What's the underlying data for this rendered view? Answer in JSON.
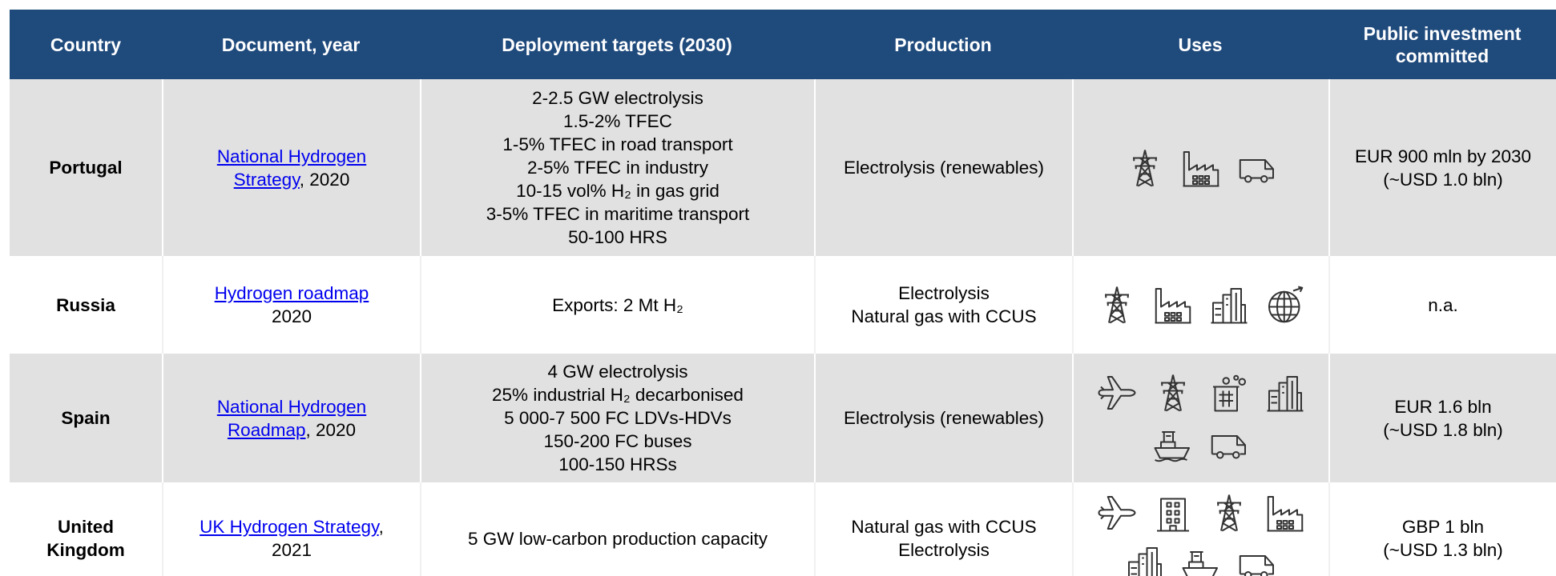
{
  "table": {
    "headers": [
      "Country",
      "Document, year",
      "Deployment targets (2030)",
      "Production",
      "Uses",
      "Public investment committed"
    ],
    "rows": [
      {
        "country": "Portugal",
        "document_link": "National Hydrogen Strategy",
        "document_suffix": ", 2020",
        "targets": [
          "2-2.5 GW electrolysis",
          "1.5-2% TFEC",
          "1-5% TFEC in road transport",
          "2-5% TFEC in industry",
          "10-15 vol% H₂ in gas grid",
          "3-5% TFEC in maritime transport",
          "50-100 HRS"
        ],
        "production": [
          "Electrolysis (renewables)"
        ],
        "investment": [
          "EUR 900 mln by 2030",
          "(~USD 1.0 bln)"
        ]
      },
      {
        "country": "Russia",
        "document_link": "Hydrogen roadmap",
        "document_suffix": " 2020",
        "targets": [
          "Exports: 2 Mt H₂"
        ],
        "production": [
          "Electrolysis",
          "Natural gas with CCUS"
        ],
        "investment": [
          "n.a."
        ]
      },
      {
        "country": "Spain",
        "document_link": "National Hydrogen Roadmap",
        "document_suffix": ", 2020",
        "targets": [
          "4 GW electrolysis",
          "25% industrial H₂ decarbonised",
          "5 000-7 500 FC LDVs-HDVs",
          "150-200 FC buses",
          "100-150 HRSs"
        ],
        "production": [
          "Electrolysis (renewables)"
        ],
        "investment": [
          "EUR 1.6 bln",
          "(~USD 1.8 bln)"
        ]
      },
      {
        "country": "United Kingdom",
        "document_link": "UK Hydrogen Strategy",
        "document_suffix": ", 2021",
        "targets": [
          "5 GW low-carbon production capacity"
        ],
        "production": [
          "Natural gas with CCUS",
          "Electrolysis"
        ],
        "investment": [
          "GBP 1 bln",
          "(~USD 1.3 bln)"
        ]
      }
    ]
  }
}
